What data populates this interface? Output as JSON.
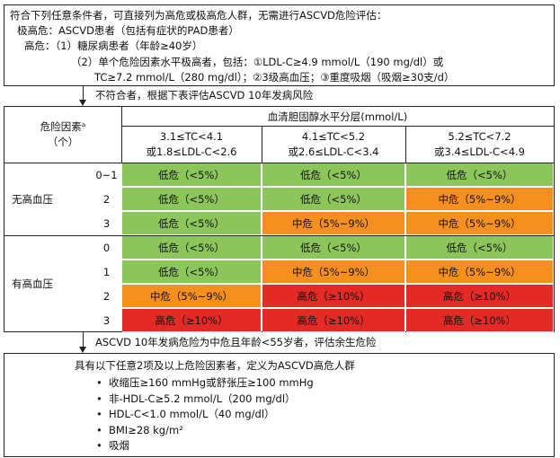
{
  "top_box": {
    "line1": "符合下列任意条件者，可直接列为高危或极高危人群，无需进行ASCVD危险评估：",
    "line2": "极高危：ASCVD患者（包括有症状的PAD患者）",
    "line3": "高危：（1）糖尿病患者（年龄≥40岁）",
    "line4": "（2）单个危险因素水平极高者，包括：①LDL-C≥4.9 mmol/L（190 mg/dl）或",
    "line5": "TC≥7.2 mmol/L（280 mg/dl）；②3级高血压；③重度吸烟（吸烟≥30支/d）"
  },
  "arrow1_text": "不符合者，根据下表评估ASCVD 10年发病风险",
  "table": {
    "corner_line1": "危险因素ᵃ",
    "corner_line2": "（个）",
    "group_header": "血清胆固醇水平分层(mmol/L)",
    "columns": [
      {
        "line1": "3.1≤TC<4.1",
        "line2": "或1.8≤LDL-C<2.6"
      },
      {
        "line1": "4.1≤TC<5.2",
        "line2": "或2.6≤LDL-C<3.4"
      },
      {
        "line1": "5.2≤TC<7.2",
        "line2": "或3.4≤LDL-C<4.9"
      }
    ],
    "groups": [
      {
        "label": "无高血压",
        "rows": [
          {
            "count": "0~1",
            "cells": [
              "低危（<5%）",
              "低危（<5%）",
              "低危（<5%）"
            ],
            "levels": [
              "low",
              "low",
              "low"
            ]
          },
          {
            "count": "2",
            "cells": [
              "低危（<5%）",
              "低危（<5%）",
              "中危（5%~9%）"
            ],
            "levels": [
              "low",
              "low",
              "mid"
            ]
          },
          {
            "count": "3",
            "cells": [
              "低危（<5%）",
              "中危（5%~9%）",
              "中危（5%~9%）"
            ],
            "levels": [
              "low",
              "mid",
              "mid"
            ]
          }
        ]
      },
      {
        "label": "有高血压",
        "rows": [
          {
            "count": "0",
            "cells": [
              "低危（<5%）",
              "低危（<5%）",
              "低危（<5%）"
            ],
            "levels": [
              "low",
              "low",
              "low"
            ]
          },
          {
            "count": "1",
            "cells": [
              "低危（<5%）",
              "中危（5%~9%）",
              "中危（5%~9%）"
            ],
            "levels": [
              "low",
              "mid",
              "mid"
            ]
          },
          {
            "count": "2",
            "cells": [
              "中危（5%~9%）",
              "高危（≥10%）",
              "高危（≥10%）"
            ],
            "levels": [
              "mid",
              "high",
              "high"
            ]
          },
          {
            "count": "3",
            "cells": [
              "高危（≥10%）",
              "高危（≥10%）",
              "高危（≥10%）"
            ],
            "levels": [
              "high",
              "high",
              "high"
            ]
          }
        ]
      }
    ],
    "colors": {
      "low": "#8cc65a",
      "mid": "#f58f1e",
      "high": "#e32a24"
    }
  },
  "arrow2_text": "ASCVD 10年发病危险为中危且年龄<55岁者，评估余生危险",
  "bottom_box": {
    "title": "具有以下任意2项及以上危险因素者，定义为ASCVD高危人群",
    "items": [
      "收缩压≥160 mmHg或舒张压≥100 mmHg",
      "非-HDL-C≥5.2 mmol/L（200 mg/dl）",
      "HDL-C<1.0 mmol/L（40 mg/dl）",
      "BMI≥28 kg/m²",
      "吸烟"
    ],
    "bullet": "•"
  }
}
